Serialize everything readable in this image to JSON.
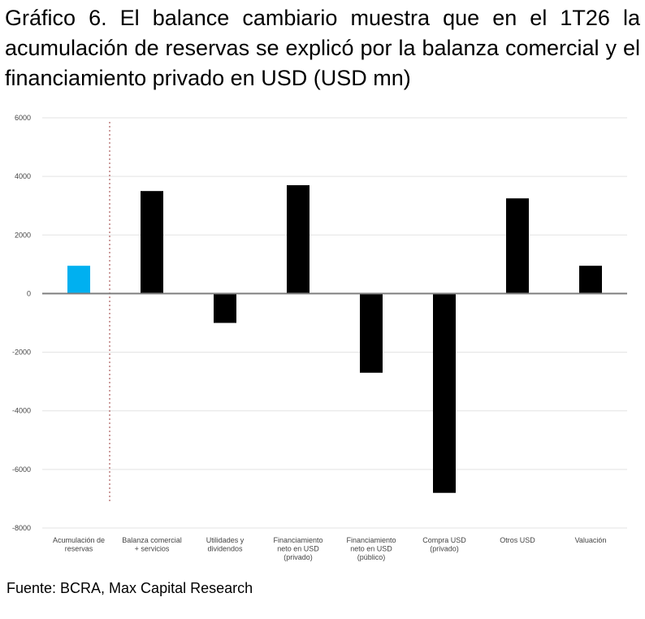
{
  "chart_data": {
    "type": "bar",
    "title": "Gráfico 6.  El balance cambiario muestra que en el 1T26 la acumulación de reservas se explicó por la balanza comercial y el financiamiento privado en USD (USD mn)",
    "categories": [
      [
        "Acumulación de",
        "reservas"
      ],
      [
        "Balanza comercial",
        "+ servicios"
      ],
      [
        "Utilidades y",
        "dividendos"
      ],
      [
        "Financiamiento",
        "neto en USD",
        "(privado)"
      ],
      [
        "Financiamiento",
        "neto en USD",
        "(público)"
      ],
      [
        "Compra USD",
        "(privado)"
      ],
      [
        "Otros USD"
      ],
      [
        "Valuación"
      ]
    ],
    "values": [
      950,
      3500,
      -1000,
      3700,
      -2700,
      -6800,
      3250,
      950
    ],
    "bar_colors": [
      "#00b0f0",
      "#000000",
      "#000000",
      "#000000",
      "#000000",
      "#000000",
      "#000000",
      "#000000"
    ],
    "ylim": [
      -8000,
      6000
    ],
    "yticks": [
      6000,
      4000,
      2000,
      0,
      -2000,
      -4000,
      -6000,
      -8000
    ],
    "grid": true,
    "xlabel": "",
    "ylabel": ""
  },
  "source": "Fuente: BCRA, Max Capital Research"
}
